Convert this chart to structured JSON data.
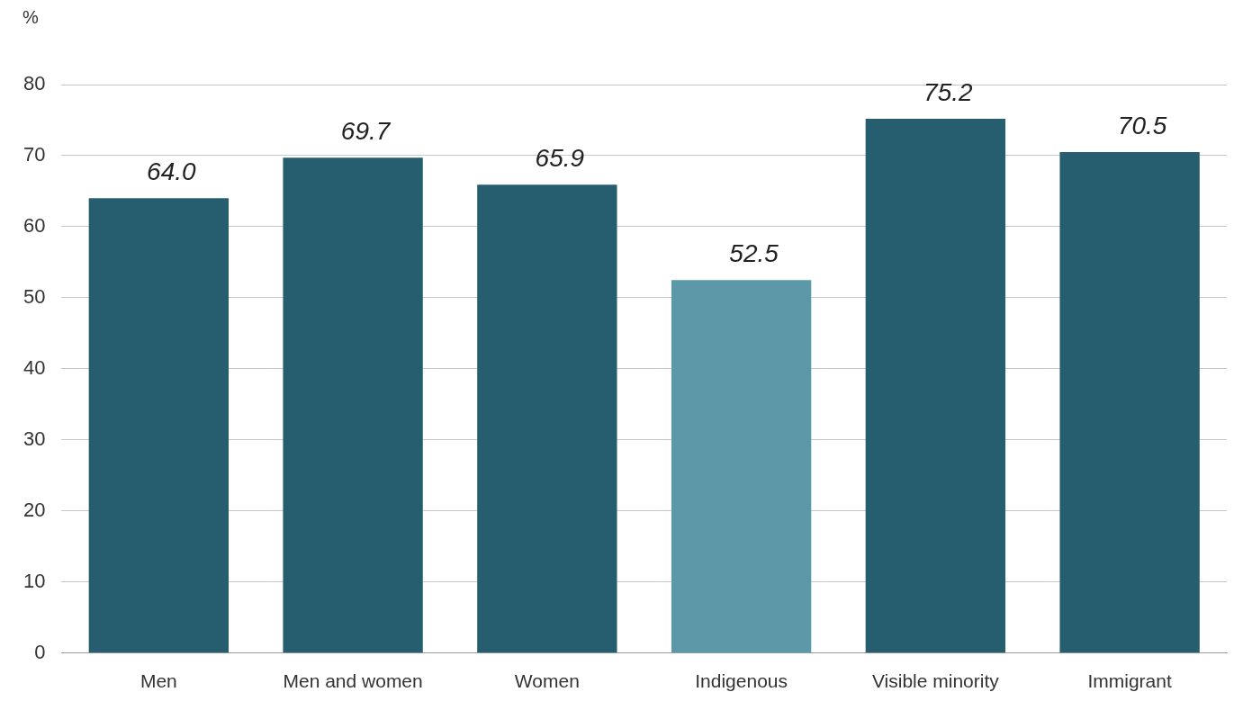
{
  "chart_data": {
    "type": "bar",
    "ylabel": "%",
    "categories": [
      "Men",
      "Men and women",
      "Women",
      "Indigenous",
      "Visible minority",
      "Immigrant"
    ],
    "values": [
      64.0,
      69.7,
      65.9,
      52.5,
      75.2,
      70.5
    ],
    "colors": [
      "#265e70",
      "#265e70",
      "#265e70",
      "#5b98a8",
      "#265e70",
      "#265e70"
    ],
    "value_labels": [
      "64.0",
      "69.7",
      "65.9",
      "52.5",
      "75.2",
      "70.5"
    ],
    "ylim": [
      0,
      80
    ],
    "yticks": [
      0,
      10,
      20,
      30,
      40,
      50,
      60,
      70,
      80
    ],
    "grid": "y",
    "legend": false
  }
}
